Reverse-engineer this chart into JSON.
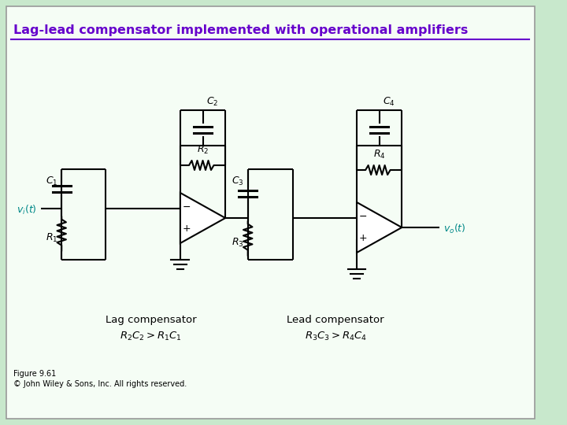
{
  "title": "Lag-lead compensator implemented with operational amplifiers",
  "title_color": "#6600cc",
  "title_fontsize": 11.5,
  "bg_color": "#c8e8cc",
  "box_bg": "#f5fdf5",
  "box_edge": "#aaaaaa",
  "figure_size": [
    7.2,
    5.4
  ],
  "dpi": 100,
  "figure_label": "Figure 9.61",
  "copyright": "© John Wiley & Sons, Inc. All rights reserved.",
  "lag_label": "Lag compensator",
  "lag_formula": "$R_2C_2 > R_1C_1$",
  "lead_label": "Lead compensator",
  "lead_formula": "$R_3C_3 > R_4C_4$",
  "vi_label": "$v_i(t)$",
  "vo_label": "$v_o(t)$",
  "C1": "$C_1$",
  "C2": "$C_2$",
  "C3": "$C_3$",
  "C4": "$C_4$",
  "R1": "$R_1$",
  "R2": "$R_2$",
  "R3": "$R_3$",
  "R4": "$R_4$"
}
